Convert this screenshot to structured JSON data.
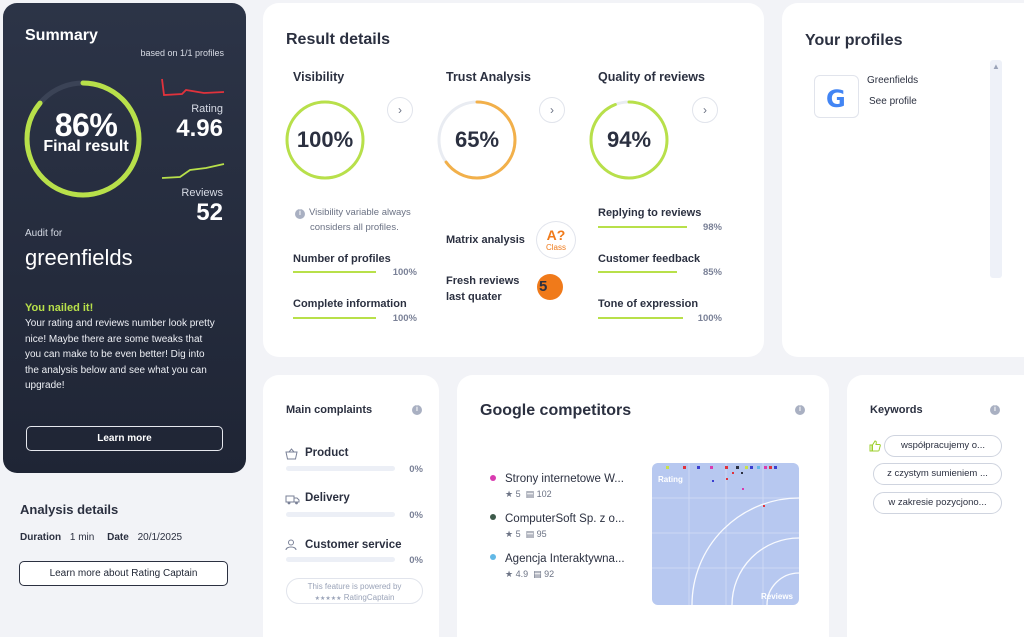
{
  "summary": {
    "title": "Summary",
    "based_on": "based on 1/1 profiles",
    "final_pct": "86%",
    "final_label": "Final result",
    "final_value": 0.86,
    "rating_label": "Rating",
    "rating_value": "4.96",
    "reviews_label": "Reviews",
    "reviews_value": "52",
    "audit_label": "Audit for",
    "audit_name": "greenfields",
    "nailed": "You nailed it!",
    "desc_lines": [
      "Your rating and reviews number look pretty",
      "nice! Maybe there are some tweaks that",
      "you can make to be even better! Dig into",
      "the analysis below and see what you can",
      "upgrade!"
    ],
    "learn_more": "Learn more",
    "colors": {
      "accent": "#b8e04a",
      "rating_spark": "#e0323c",
      "bg": "#252b3c"
    }
  },
  "analysis": {
    "title": "Analysis details",
    "duration_label": "Duration",
    "duration_value": "1 min",
    "date_label": "Date",
    "date_value": "20/1/2025",
    "button": "Learn more about Rating Captain"
  },
  "result": {
    "title": "Result details",
    "visibility": {
      "title": "Visibility",
      "pct": "100%",
      "value": 1.0,
      "note_lines": [
        "Visibility variable always",
        "considers all profiles."
      ],
      "metrics": [
        {
          "label": "Number of profiles",
          "pct": "100%",
          "value": 1.0
        },
        {
          "label": "Complete information",
          "pct": "100%",
          "value": 1.0
        }
      ]
    },
    "trust": {
      "title": "Trust Analysis",
      "pct": "65%",
      "value": 0.65,
      "matrix_label": "Matrix analysis",
      "matrix_grade": "A?",
      "matrix_class": "Class",
      "fresh_line1": "Fresh reviews",
      "fresh_line2": "last quater",
      "fresh_value": "5"
    },
    "quality": {
      "title": "Quality of reviews",
      "pct": "94%",
      "value": 0.94,
      "metrics": [
        {
          "label": "Replying to reviews",
          "pct": "98%",
          "value": 0.98
        },
        {
          "label": "Customer feedback",
          "pct": "85%",
          "value": 0.85
        },
        {
          "label": "Tone of expression",
          "pct": "100%",
          "value": 1.0
        }
      ]
    },
    "chevron": "›"
  },
  "profiles": {
    "title": "Your profiles",
    "items": [
      {
        "name": "Greenfields",
        "link": "See profile",
        "icon": "google-icon"
      }
    ]
  },
  "complaints": {
    "title": "Main complaints",
    "items": [
      {
        "label": "Product",
        "pct": "0%",
        "icon": "basket-icon"
      },
      {
        "label": "Delivery",
        "pct": "0%",
        "icon": "truck-icon"
      },
      {
        "label": "Customer service",
        "pct": "0%",
        "icon": "person-icon"
      }
    ],
    "powered_line1": "This feature is powered by",
    "powered_line2": "RatingCaptain"
  },
  "competitors": {
    "title": "Google competitors",
    "items": [
      {
        "name": "Strony internetowe W...",
        "rating": "5",
        "reviews": "102",
        "color": "#d93bb0"
      },
      {
        "name": "ComputerSoft Sp. z o...",
        "rating": "5",
        "reviews": "95",
        "color": "#3d5a4a"
      },
      {
        "name": "Agencja Interaktywna...",
        "rating": "4.9",
        "reviews": "92",
        "color": "#62b8e6"
      }
    ],
    "plot_label_y": "Rating",
    "plot_label_x": "Reviews"
  },
  "keywords": {
    "title": "Keywords",
    "items": [
      "współpracujemy o...",
      "z czystym sumieniem ...",
      "w zakresie pozycjono..."
    ]
  }
}
